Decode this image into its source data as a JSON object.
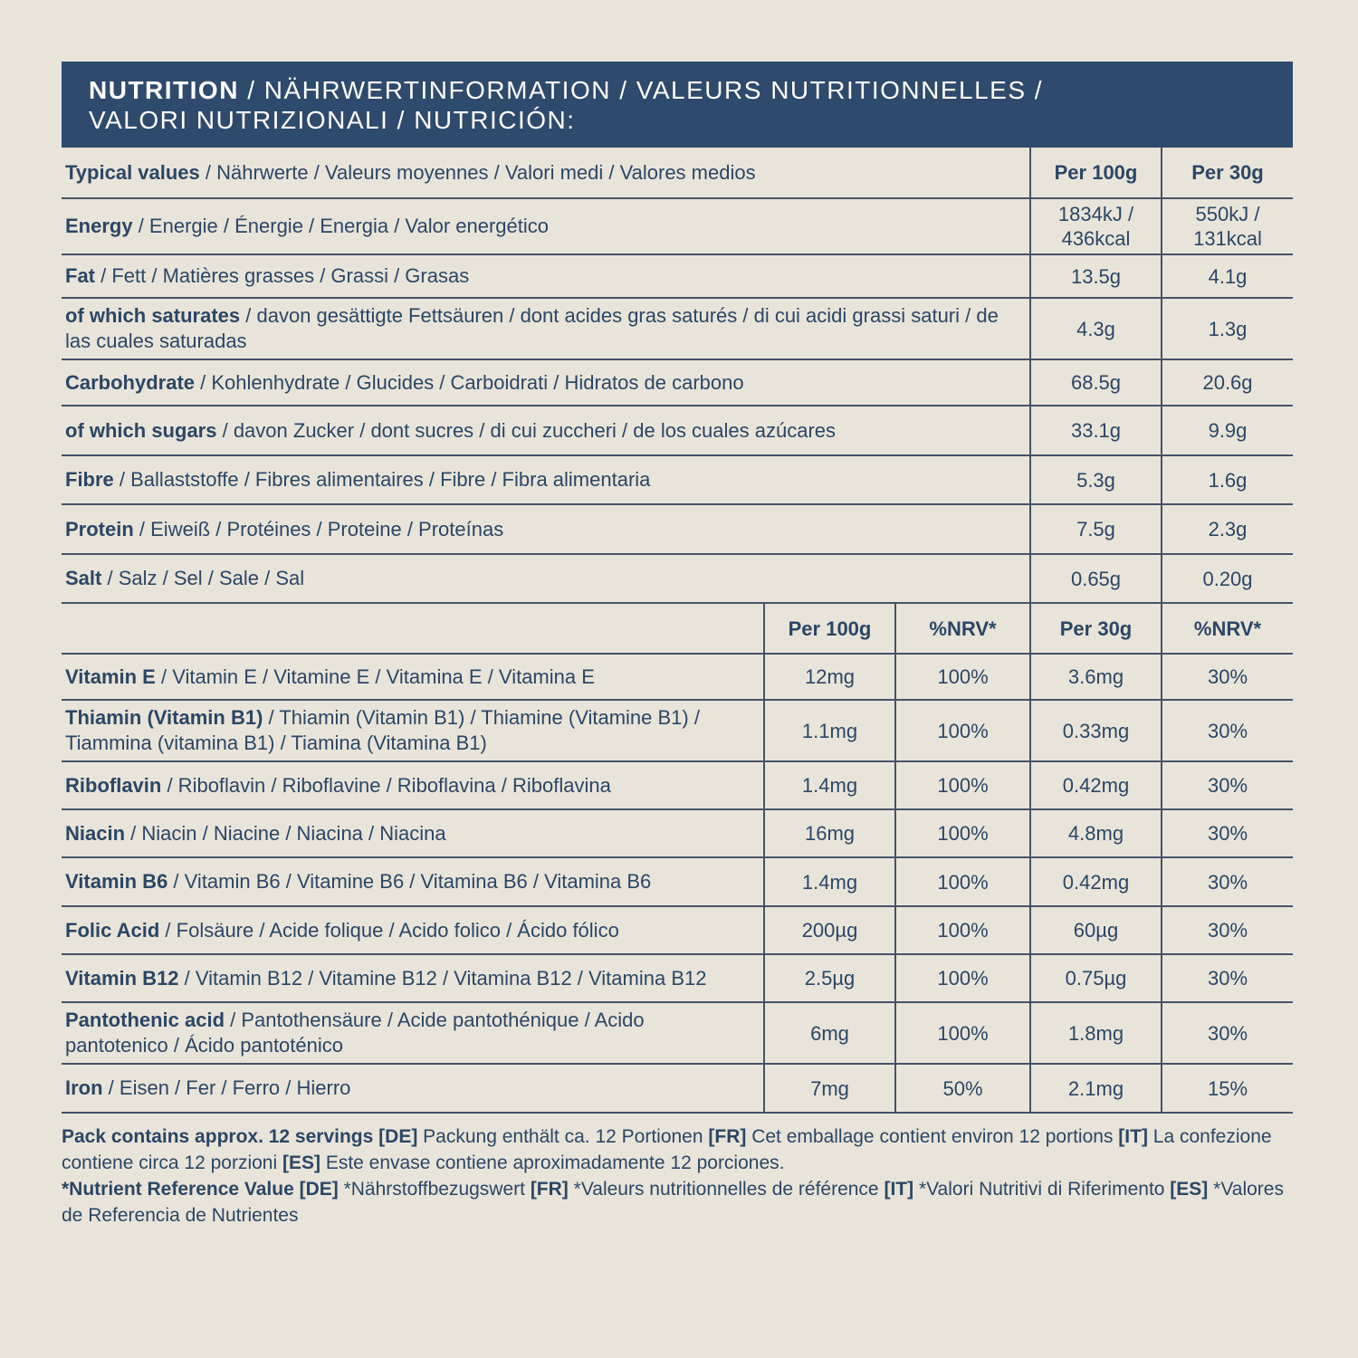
{
  "colors": {
    "banner_navy": "#2e4a6c",
    "background_beige": "#e9e4da",
    "text_navy": "#2b4665",
    "line_navy": "#455268",
    "banner_text": "#ffffff"
  },
  "banner": {
    "line1_bold": "NUTRITION",
    "line1_rest": " / NÄHRWERTINFORMATION / VALEURS NUTRITIONNELLES /",
    "line2": "VALORI NUTRIZIONALI / NUTRICIÓN:"
  },
  "table1": {
    "header": {
      "label_bold": "Typical values",
      "label_rest": " / Nährwerte / Valeurs moyennes / Valori medi / Valores medios",
      "col_per100": "Per 100g",
      "col_per30": "Per 30g"
    },
    "rows": [
      {
        "name": "Energy",
        "rest": " / Energie / Énergie / Energia / Valor energético",
        "per100": "1834kJ / 436kcal",
        "per30": "550kJ / 131kcal"
      },
      {
        "name": "Fat",
        "rest": " / Fett / Matières grasses / Grassi / Grasas",
        "per100": "13.5g",
        "per30": "4.1g"
      },
      {
        "name": "of which saturates",
        "rest": " / davon gesättigte Fettsäuren / dont acides gras saturés / di cui acidi grassi saturi / de las cuales saturadas",
        "per100": "4.3g",
        "per30": "1.3g"
      },
      {
        "name": "Carbohydrate",
        "rest": " / Kohlenhydrate / Glucides / Carboidrati / Hidratos de carbono",
        "per100": "68.5g",
        "per30": "20.6g"
      },
      {
        "name": "of which sugars",
        "rest": " / davon Zucker / dont sucres / di cui zuccheri / de los cuales azúcares",
        "per100": "33.1g",
        "per30": "9.9g"
      },
      {
        "name": "Fibre",
        "rest": " / Ballaststoffe / Fibres alimentaires / Fibre / Fibra alimentaria",
        "per100": "5.3g",
        "per30": "1.6g"
      },
      {
        "name": "Protein",
        "rest": " / Eiweiß / Protéines / Proteine / Proteínas",
        "per100": "7.5g",
        "per30": "2.3g"
      },
      {
        "name": "Salt",
        "rest": " / Salz / Sel / Sale / Sal",
        "per100": "0.65g",
        "per30": "0.20g"
      }
    ]
  },
  "table2": {
    "header": {
      "col_per100": "Per 100g",
      "col_nrv100": "%NRV*",
      "col_per30": "Per 30g",
      "col_nrv30": "%NRV*"
    },
    "rows": [
      {
        "name": "Vitamin E",
        "rest": " / Vitamin E / Vitamine E / Vitamina E / Vitamina E",
        "per100": "12mg",
        "nrv100": "100%",
        "per30": "3.6mg",
        "nrv30": "30%"
      },
      {
        "name": "Thiamin (Vitamin B1)",
        "rest": " / Thiamin (Vitamin B1) / Thiamine (Vitamine B1) / Tiammina (vitamina B1) / Tiamina (Vitamina B1)",
        "per100": "1.1mg",
        "nrv100": "100%",
        "per30": "0.33mg",
        "nrv30": "30%"
      },
      {
        "name": "Riboflavin",
        "rest": " / Riboflavin / Riboflavine / Riboflavina / Riboflavina",
        "per100": "1.4mg",
        "nrv100": "100%",
        "per30": "0.42mg",
        "nrv30": "30%"
      },
      {
        "name": "Niacin",
        "rest": " / Niacin / Niacine / Niacina / Niacina",
        "per100": "16mg",
        "nrv100": "100%",
        "per30": "4.8mg",
        "nrv30": "30%"
      },
      {
        "name": "Vitamin B6",
        "rest": " / Vitamin B6 / Vitamine B6 / Vitamina B6 / Vitamina B6",
        "per100": "1.4mg",
        "nrv100": "100%",
        "per30": "0.42mg",
        "nrv30": "30%"
      },
      {
        "name": "Folic Acid",
        "rest": " / Folsäure / Acide folique / Acido folico / Ácido fólico",
        "per100": "200µg",
        "nrv100": "100%",
        "per30": "60µg",
        "nrv30": "30%"
      },
      {
        "name": "Vitamin B12",
        "rest": " / Vitamin B12 / Vitamine B12 / Vitamina B12 / Vitamina B12",
        "per100": "2.5µg",
        "nrv100": "100%",
        "per30": "0.75µg",
        "nrv30": "30%"
      },
      {
        "name": "Pantothenic acid",
        "rest": " / Pantothensäure / Acide pantothénique / Acido pantotenico / Ácido pantoténico",
        "per100": "6mg",
        "nrv100": "100%",
        "per30": "1.8mg",
        "nrv30": "30%"
      },
      {
        "name": "Iron",
        "rest": " / Eisen / Fer / Ferro / Hierro",
        "per100": "7mg",
        "nrv100": "50%",
        "per30": "2.1mg",
        "nrv30": "15%"
      }
    ]
  },
  "footer": {
    "p1": [
      {
        "b": true,
        "t": "Pack contains approx. 12 servings "
      },
      {
        "b": true,
        "t": "[DE] "
      },
      {
        "b": false,
        "t": "Packung enthält ca. 12 Portionen "
      },
      {
        "b": true,
        "t": "[FR] "
      },
      {
        "b": false,
        "t": "Cet emballage contient environ 12 portions "
      },
      {
        "b": true,
        "t": "[IT] "
      },
      {
        "b": false,
        "t": "La confezione contiene circa 12 porzioni "
      },
      {
        "b": true,
        "t": "[ES] "
      },
      {
        "b": false,
        "t": "Este envase contiene aproximadamente 12 porciones."
      }
    ],
    "p2": [
      {
        "b": true,
        "t": "*Nutrient Reference Value "
      },
      {
        "b": true,
        "t": "[DE] "
      },
      {
        "b": false,
        "t": "*Nährstoffbezugswert "
      },
      {
        "b": true,
        "t": "[FR] "
      },
      {
        "b": false,
        "t": "*Valeurs nutritionnelles de référence "
      },
      {
        "b": true,
        "t": "[IT] "
      },
      {
        "b": false,
        "t": "*Valori Nutritivi di Riferimento "
      },
      {
        "b": true,
        "t": "[ES] "
      },
      {
        "b": false,
        "t": "*Valores de Referencia de Nutrientes"
      }
    ]
  }
}
